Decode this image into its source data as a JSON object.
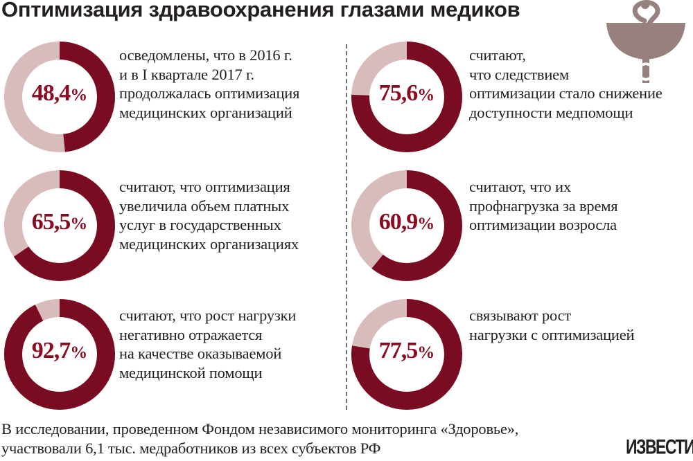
{
  "title": "Оптимизация здравоохранения глазами медиков",
  "colors": {
    "filled": "#7a0c22",
    "remaining": "#d8bcbb",
    "text": "#231f20",
    "percent": "#8a0b22"
  },
  "chart_data": [
    {
      "type": "pie",
      "style": "donut",
      "value": 48.4,
      "value_label": "48,4",
      "unit": "%",
      "description_lines": [
        "осведомлены, что в 2016 г.",
        "и в I квартале 2017 г.",
        "продолжалась оптимизация",
        "медицинских организаций"
      ]
    },
    {
      "type": "pie",
      "style": "donut",
      "value": 75.6,
      "value_label": "75,6",
      "unit": "%",
      "description_lines": [
        "считают,",
        "что следствием",
        "оптимизации стало снижение",
        "доступности медпомощи"
      ]
    },
    {
      "type": "pie",
      "style": "donut",
      "value": 65.5,
      "value_label": "65,5",
      "unit": "%",
      "description_lines": [
        "считают, что оптимизация",
        "увеличила объем платных",
        "услуг в государственных",
        "медицинских организациях"
      ]
    },
    {
      "type": "pie",
      "style": "donut",
      "value": 60.9,
      "value_label": "60,9",
      "unit": "%",
      "description_lines": [
        "считают, что их",
        "профнагрузка за время",
        "оптимизации возросла"
      ]
    },
    {
      "type": "pie",
      "style": "donut",
      "value": 92.7,
      "value_label": "92,7",
      "unit": "%",
      "description_lines": [
        "считают, что рост нагрузки",
        "негативно отражается",
        "на качестве оказываемой",
        "медицинской помощи"
      ]
    },
    {
      "type": "pie",
      "style": "donut",
      "value": 77.5,
      "value_label": "77,5",
      "unit": "%",
      "description_lines": [
        "связывают рост",
        "нагрузки с оптимизацией"
      ]
    }
  ],
  "footer": {
    "line1": "В исследовании, проведенном Фондом независимого мониторинга «Здоровье»,",
    "line2": "участвовали 6,1 тыс. медработников из всех субъектов РФ"
  },
  "emblem_icon": "bowl-of-hygieia-icon",
  "logo": "ИЗВЕСТИЯ"
}
